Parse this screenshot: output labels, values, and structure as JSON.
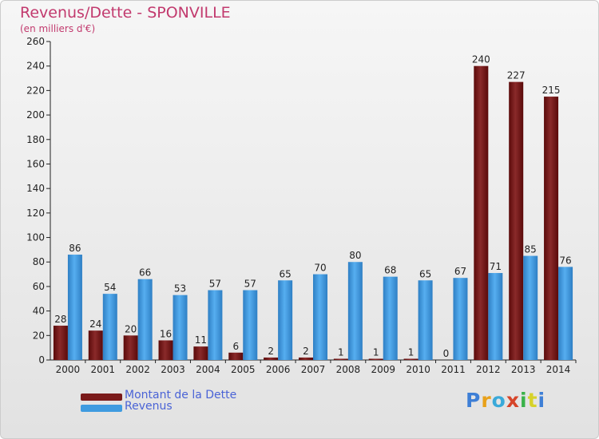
{
  "header": {
    "title": "Revenus/Dette - SPONVILLE",
    "subtitle": "(en milliers d'€)"
  },
  "chart_data": {
    "type": "bar",
    "title": "Revenus/Dette - SPONVILLE",
    "subtitle": "(en milliers d'€)",
    "xlabel": "",
    "ylabel": "",
    "categories": [
      "2000",
      "2001",
      "2002",
      "2003",
      "2004",
      "2005",
      "2006",
      "2007",
      "2008",
      "2009",
      "2010",
      "2011",
      "2012",
      "2013",
      "2014"
    ],
    "series": [
      {
        "name": "Montant de la Dette",
        "color": "#7a1a1a",
        "values": [
          28,
          24,
          20,
          16,
          11,
          6,
          2,
          2,
          1,
          1,
          1,
          0,
          240,
          227,
          215
        ]
      },
      {
        "name": "Revenus",
        "color": "#3f9be0",
        "values": [
          86,
          54,
          66,
          53,
          57,
          57,
          65,
          70,
          80,
          68,
          65,
          67,
          71,
          85,
          76
        ]
      }
    ],
    "ylim": [
      0,
      260
    ],
    "yticks": [
      0,
      20,
      40,
      60,
      80,
      100,
      120,
      140,
      160,
      180,
      200,
      220,
      240,
      260
    ],
    "grid": false,
    "legend": "bottom-left"
  },
  "legend": {
    "items": [
      {
        "label": "Montant de la Dette",
        "color": "#7a1a1a"
      },
      {
        "label": "Revenus",
        "color": "#3f9be0"
      }
    ]
  },
  "brand": {
    "text": "Proxiti"
  }
}
